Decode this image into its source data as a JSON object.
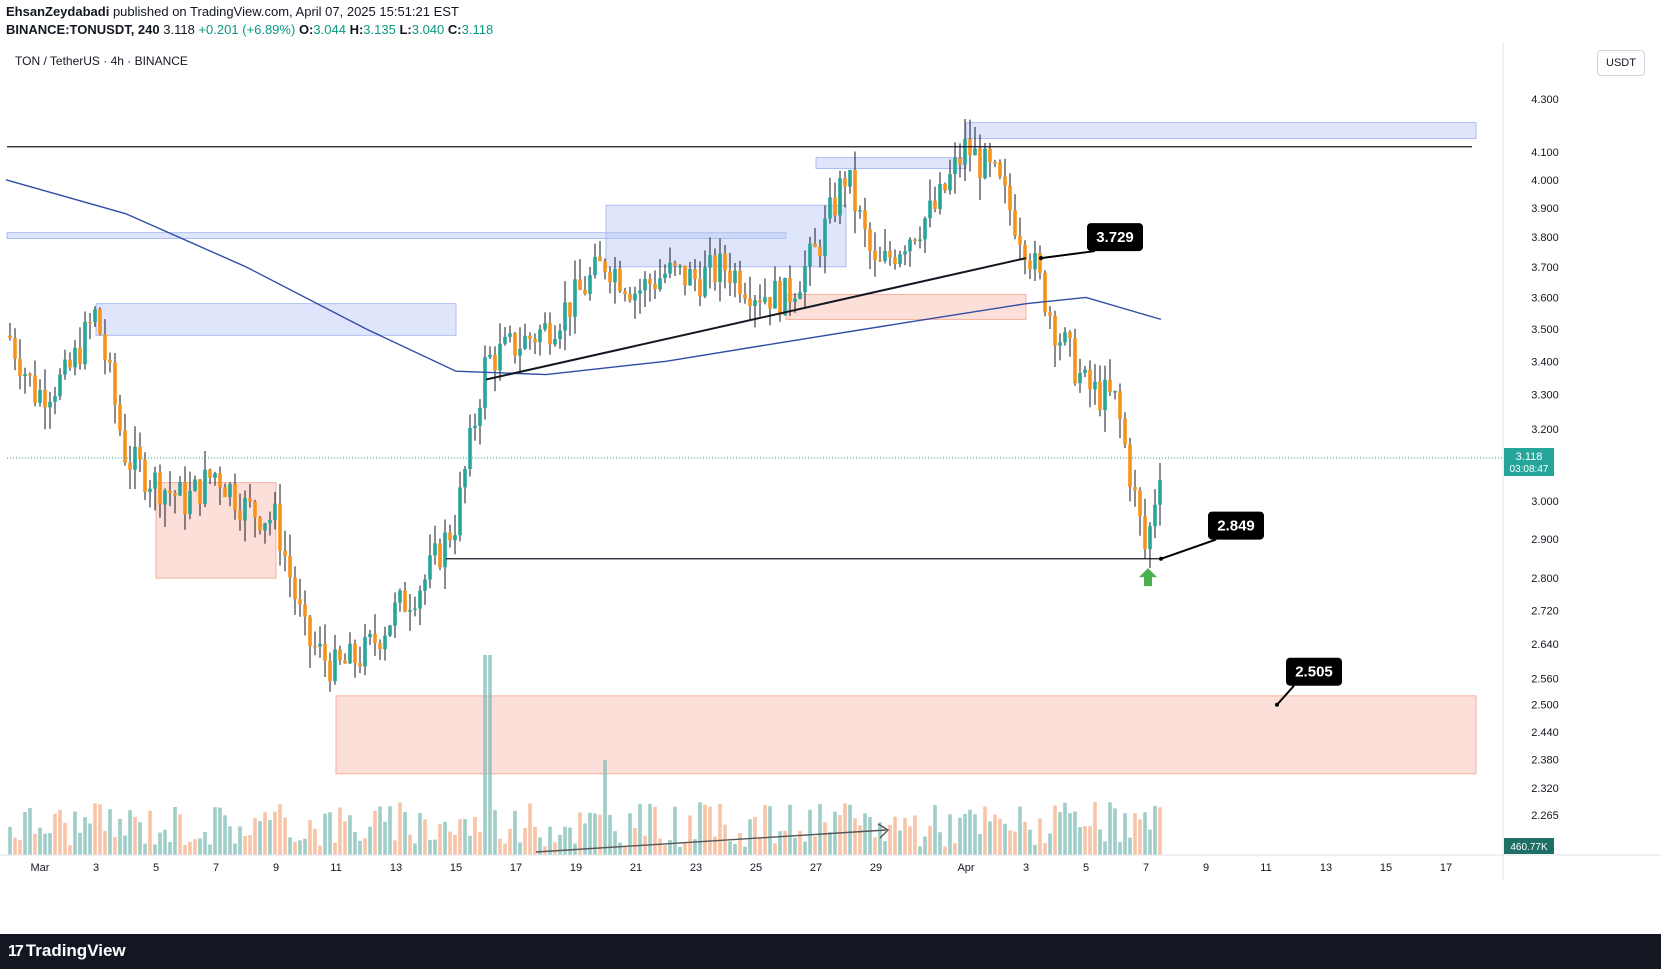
{
  "header": {
    "author": "EhsanZeydabadi",
    "published_text": "published on TradingView.com, April 07, 2025 15:51:21 EST",
    "symbol_line": "BINANCE:TONUSDT, 240",
    "last": "3.118",
    "change": "+0.201 (+6.89%)",
    "o_label": "O:",
    "o_value": "3.044",
    "h_label": "H:",
    "h_value": "3.135",
    "l_label": "L:",
    "l_value": "3.040",
    "c_label": "C:",
    "c_value": "3.118"
  },
  "chart_title": "TON / TetherUS · 4h · BINANCE",
  "price_unit": "USDT",
  "footer": {
    "brand": "TradingView",
    "logo_icon": "tradingview-logo-icon"
  },
  "colors": {
    "up": "#26a69a",
    "down": "#f7931a",
    "ma": "#2f4ea3",
    "demand_zone": "#f8b7a9",
    "supply_zone": "#b7c6f5",
    "arrow": "#4caf50",
    "label_bg": "#000000"
  },
  "chart_data": {
    "type": "candlestick",
    "scale": "log",
    "ylim": [
      2.2,
      4.35
    ],
    "y_ticks": [
      "4.300",
      "4.100",
      "4.000",
      "3.900",
      "3.800",
      "3.700",
      "3.600",
      "3.500",
      "3.400",
      "3.300",
      "3.200",
      "3.000",
      "2.900",
      "2.800",
      "2.720",
      "2.640",
      "2.560",
      "2.500",
      "2.440",
      "2.380",
      "2.320",
      "2.265"
    ],
    "x_ticks": [
      "Mar",
      "3",
      "5",
      "7",
      "9",
      "11",
      "13",
      "15",
      "17",
      "19",
      "21",
      "23",
      "25",
      "27",
      "29",
      "Apr",
      "3",
      "5",
      "7",
      "9",
      "11",
      "13",
      "15",
      "17"
    ],
    "current_price": {
      "value": "3.118",
      "countdown": "03:08:47"
    },
    "volume_value": "460.77K",
    "annotations": [
      "3.729",
      "2.849",
      "2.505"
    ],
    "horizontal_lines": [
      4.12,
      2.849
    ],
    "trendline": {
      "from": [
        "Mar 16",
        3.345
      ],
      "to": [
        "Apr 3",
        3.729
      ]
    },
    "zones": [
      {
        "kind": "supply",
        "from": "Mar 3",
        "to": "Mar 15",
        "low": 3.48,
        "high": 3.58
      },
      {
        "kind": "supply",
        "from": "Feb 28",
        "to": "Mar 26",
        "low": 3.795,
        "high": 3.815
      },
      {
        "kind": "supply",
        "from": "Mar 20",
        "to": "Mar 28",
        "low": 3.7,
        "high": 3.91
      },
      {
        "kind": "supply",
        "from": "Mar 27",
        "to": "Apr 1",
        "low": 4.04,
        "high": 4.08
      },
      {
        "kind": "supply",
        "from": "Apr 1",
        "to": "Apr 18",
        "low": 4.15,
        "high": 4.21
      },
      {
        "kind": "demand",
        "from": "Mar 5",
        "to": "Mar 9",
        "low": 2.8,
        "high": 3.05
      },
      {
        "kind": "demand",
        "from": "Mar 26",
        "to": "Apr 3",
        "low": 3.53,
        "high": 3.61
      },
      {
        "kind": "demand",
        "from": "Mar 11",
        "to": "Apr 18",
        "low": 2.35,
        "high": 2.52
      }
    ],
    "close_path": [
      [
        "Feb 28",
        3.5
      ],
      [
        "Mar 1",
        3.3
      ],
      [
        "Mar 2",
        3.35
      ],
      [
        "Mar 3",
        3.55
      ],
      [
        "Mar 4",
        3.12
      ],
      [
        "Mar 5",
        3.05
      ],
      [
        "Mar 6",
        3.0
      ],
      [
        "Mar 7",
        3.08
      ],
      [
        "Mar 8",
        2.98
      ],
      [
        "Mar 9",
        2.95
      ],
      [
        "Mar 10",
        2.65
      ],
      [
        "Mar 11",
        2.58
      ],
      [
        "Mar 12",
        2.62
      ],
      [
        "Mar 13",
        2.72
      ],
      [
        "Mar 14",
        2.8
      ],
      [
        "Mar 15",
        2.95
      ],
      [
        "Mar 16",
        3.4
      ],
      [
        "Mar 17",
        3.45
      ],
      [
        "Mar 18",
        3.5
      ],
      [
        "Mar 19",
        3.6
      ],
      [
        "Mar 20",
        3.72
      ],
      [
        "Mar 21",
        3.62
      ],
      [
        "Mar 22",
        3.68
      ],
      [
        "Mar 23",
        3.66
      ],
      [
        "Mar 24",
        3.7
      ],
      [
        "Mar 25",
        3.62
      ],
      [
        "Mar 26",
        3.6
      ],
      [
        "Mar 27",
        3.75
      ],
      [
        "Mar 28",
        4.02
      ],
      [
        "Mar 29",
        3.68
      ],
      [
        "Mar 30",
        3.8
      ],
      [
        "Mar 31",
        3.9
      ],
      [
        "Apr 1",
        4.12
      ],
      [
        "Apr 2",
        4.0
      ],
      [
        "Apr 3",
        3.78
      ],
      [
        "Apr 4",
        3.5
      ],
      [
        "Apr 5",
        3.32
      ],
      [
        "Apr 6",
        3.28
      ],
      [
        "Apr 7",
        2.86
      ],
      [
        "Apr 7.5",
        3.118
      ]
    ],
    "ma_path": [
      [
        "Feb 28",
        4.0
      ],
      [
        "Mar 4",
        3.88
      ],
      [
        "Mar 8",
        3.7
      ],
      [
        "Mar 12",
        3.5
      ],
      [
        "Mar 15",
        3.37
      ],
      [
        "Mar 18",
        3.36
      ],
      [
        "Mar 22",
        3.4
      ],
      [
        "Mar 26",
        3.46
      ],
      [
        "Mar 30",
        3.52
      ],
      [
        "Apr 3",
        3.58
      ],
      [
        "Apr 5",
        3.6
      ],
      [
        "Apr 7.5",
        3.53
      ]
    ]
  }
}
